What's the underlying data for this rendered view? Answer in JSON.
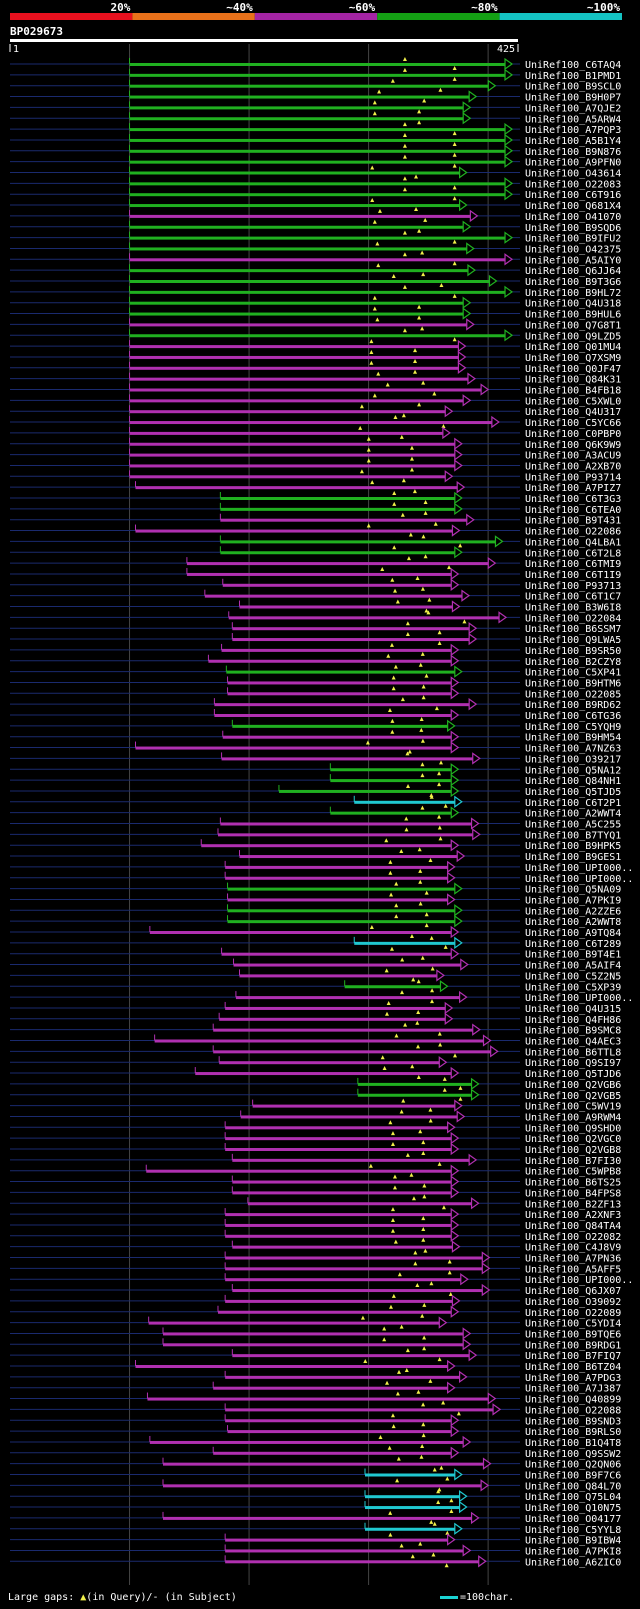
{
  "chart_data": {
    "type": "alignment",
    "query_id": "BP029673",
    "query_start": "1",
    "query_end": "425",
    "query_length": 425,
    "identity_scale": [
      {
        "label": "20%",
        "color": "#e8101e"
      },
      {
        "label": "~40%",
        "color": "#e8711a"
      },
      {
        "label": "~60%",
        "color": "#a424a4"
      },
      {
        "label": "~80%",
        "color": "#14a014"
      },
      {
        "label": "~100%",
        "color": "#14c3c3"
      }
    ],
    "class_colors": {
      "g": "#20b020",
      "m": "#b030b0",
      "c": "#20c8d0"
    },
    "legend": {
      "gaps": "Large gaps:",
      "gaps_query": "(in Query)/",
      "gaps_subject": "- (in Subject)",
      "scale": "=100char."
    },
    "hits": [
      {
        "id": "UniRef100_C6TAQ4",
        "c": "g",
        "s": 100,
        "e": 420
      },
      {
        "id": "UniRef100_B1PMD1",
        "c": "g",
        "s": 100,
        "e": 420
      },
      {
        "id": "UniRef100_B9SCL0",
        "c": "g",
        "s": 100,
        "e": 406
      },
      {
        "id": "UniRef100_B9H0P7",
        "c": "g",
        "s": 100,
        "e": 390
      },
      {
        "id": "UniRef100_A7QJE2",
        "c": "g",
        "s": 100,
        "e": 385
      },
      {
        "id": "UniRef100_A5ARW4",
        "c": "g",
        "s": 100,
        "e": 385
      },
      {
        "id": "UniRef100_A7PQP3",
        "c": "g",
        "s": 100,
        "e": 420
      },
      {
        "id": "UniRef100_A5B1Y4",
        "c": "g",
        "s": 100,
        "e": 420
      },
      {
        "id": "UniRef100_B9N876",
        "c": "g",
        "s": 100,
        "e": 420
      },
      {
        "id": "UniRef100_A9PFN0",
        "c": "g",
        "s": 100,
        "e": 420
      },
      {
        "id": "UniRef100_O43614",
        "c": "g",
        "s": 100,
        "e": 382
      },
      {
        "id": "UniRef100_O22083",
        "c": "g",
        "s": 100,
        "e": 420
      },
      {
        "id": "UniRef100_C6T916",
        "c": "g",
        "s": 100,
        "e": 420
      },
      {
        "id": "UniRef100_Q681X4",
        "c": "g",
        "s": 100,
        "e": 382
      },
      {
        "id": "UniRef100_O41070",
        "c": "m",
        "s": 100,
        "e": 391
      },
      {
        "id": "UniRef100_B9SQD6",
        "c": "g",
        "s": 100,
        "e": 385
      },
      {
        "id": "UniRef100_B9IFU2",
        "c": "g",
        "s": 100,
        "e": 420
      },
      {
        "id": "UniRef100_O42375",
        "c": "g",
        "s": 100,
        "e": 388
      },
      {
        "id": "UniRef100_A5AIY0",
        "c": "m",
        "s": 100,
        "e": 420
      },
      {
        "id": "UniRef100_Q6JJ64",
        "c": "g",
        "s": 100,
        "e": 389
      },
      {
        "id": "UniRef100_B9T3G6",
        "c": "g",
        "s": 100,
        "e": 407
      },
      {
        "id": "UniRef100_B9HL72",
        "c": "g",
        "s": 100,
        "e": 420
      },
      {
        "id": "UniRef100_Q4U318",
        "c": "g",
        "s": 100,
        "e": 385
      },
      {
        "id": "UniRef100_B9HUL6",
        "c": "g",
        "s": 100,
        "e": 385
      },
      {
        "id": "UniRef100_Q7G8T1",
        "c": "m",
        "s": 100,
        "e": 388
      },
      {
        "id": "UniRef100_Q9LZD5",
        "c": "g",
        "s": 100,
        "e": 420
      },
      {
        "id": "UniRef100_Q01MU4",
        "c": "m",
        "s": 100,
        "e": 381
      },
      {
        "id": "UniRef100_Q7XSM9",
        "c": "m",
        "s": 100,
        "e": 381
      },
      {
        "id": "UniRef100_Q0JF47",
        "c": "m",
        "s": 100,
        "e": 381
      },
      {
        "id": "UniRef100_Q84K31",
        "c": "m",
        "s": 100,
        "e": 389
      },
      {
        "id": "UniRef100_B4FB18",
        "c": "m",
        "s": 100,
        "e": 400
      },
      {
        "id": "UniRef100_C5XWL0",
        "c": "m",
        "s": 100,
        "e": 385
      },
      {
        "id": "UniRef100_Q4U317",
        "c": "m",
        "s": 100,
        "e": 370
      },
      {
        "id": "UniRef100_C5YC66",
        "c": "m",
        "s": 100,
        "e": 409
      },
      {
        "id": "UniRef100_C0PBP0",
        "c": "m",
        "s": 100,
        "e": 368
      },
      {
        "id": "UniRef100_Q6K9W9",
        "c": "m",
        "s": 100,
        "e": 378
      },
      {
        "id": "UniRef100_A3ACU9",
        "c": "m",
        "s": 100,
        "e": 378
      },
      {
        "id": "UniRef100_A2XB70",
        "c": "m",
        "s": 100,
        "e": 378
      },
      {
        "id": "UniRef100_P93714",
        "c": "m",
        "s": 100,
        "e": 370
      },
      {
        "id": "UniRef100_A7PIZ7",
        "c": "m",
        "s": 105,
        "e": 380
      },
      {
        "id": "UniRef100_C6T3G3",
        "c": "g",
        "s": 176,
        "e": 378
      },
      {
        "id": "UniRef100_C6TEA0",
        "c": "g",
        "s": 176,
        "e": 378
      },
      {
        "id": "UniRef100_B9T431",
        "c": "m",
        "s": 176,
        "e": 388
      },
      {
        "id": "UniRef100_O22086",
        "c": "m",
        "s": 105,
        "e": 376
      },
      {
        "id": "UniRef100_Q4LBA1",
        "c": "g",
        "s": 176,
        "e": 412
      },
      {
        "id": "UniRef100_C6T2L8",
        "c": "g",
        "s": 176,
        "e": 378
      },
      {
        "id": "UniRef100_C6TMI9",
        "c": "m",
        "s": 148,
        "e": 406
      },
      {
        "id": "UniRef100_C6T1I9",
        "c": "m",
        "s": 148,
        "e": 375
      },
      {
        "id": "UniRef100_P93713",
        "c": "m",
        "s": 178,
        "e": 375
      },
      {
        "id": "UniRef100_C6T1C7",
        "c": "m",
        "s": 163,
        "e": 384
      },
      {
        "id": "UniRef100_B3W6I8",
        "c": "m",
        "s": 192,
        "e": 376
      },
      {
        "id": "UniRef100_O22084",
        "c": "m",
        "s": 183,
        "e": 415
      },
      {
        "id": "UniRef100_B6SSM7",
        "c": "m",
        "s": 186,
        "e": 390
      },
      {
        "id": "UniRef100_Q9LWA5",
        "c": "m",
        "s": 186,
        "e": 390
      },
      {
        "id": "UniRef100_B9SR50",
        "c": "m",
        "s": 177,
        "e": 375
      },
      {
        "id": "UniRef100_B2CZY8",
        "c": "m",
        "s": 166,
        "e": 375
      },
      {
        "id": "UniRef100_C5XP41",
        "c": "g",
        "s": 181,
        "e": 378
      },
      {
        "id": "UniRef100_B9HTM6",
        "c": "m",
        "s": 182,
        "e": 375
      },
      {
        "id": "UniRef100_O22085",
        "c": "m",
        "s": 182,
        "e": 375
      },
      {
        "id": "UniRef100_B9RD62",
        "c": "m",
        "s": 171,
        "e": 390
      },
      {
        "id": "UniRef100_C6TG36",
        "c": "m",
        "s": 171,
        "e": 375
      },
      {
        "id": "UniRef100_C5YQH9",
        "c": "g",
        "s": 186,
        "e": 372
      },
      {
        "id": "UniRef100_B9HM54",
        "c": "m",
        "s": 178,
        "e": 375
      },
      {
        "id": "UniRef100_A7NZ63",
        "c": "m",
        "s": 105,
        "e": 375
      },
      {
        "id": "UniRef100_O39217",
        "c": "m",
        "s": 177,
        "e": 393
      },
      {
        "id": "UniRef100_Q5NA12",
        "c": "g",
        "s": 268,
        "e": 375
      },
      {
        "id": "UniRef100_Q84NH1",
        "c": "g",
        "s": 268,
        "e": 375
      },
      {
        "id": "UniRef100_Q5TJD5",
        "c": "g",
        "s": 225,
        "e": 375
      },
      {
        "id": "UniRef100_C6T2P1",
        "c": "c",
        "s": 288,
        "e": 378
      },
      {
        "id": "UniRef100_A2WWT4",
        "c": "g",
        "s": 268,
        "e": 375
      },
      {
        "id": "UniRef100_A5C255",
        "c": "m",
        "s": 176,
        "e": 392
      },
      {
        "id": "UniRef100_B7TYQ1",
        "c": "m",
        "s": 174,
        "e": 393
      },
      {
        "id": "UniRef100_B9HPK5",
        "c": "m",
        "s": 160,
        "e": 375
      },
      {
        "id": "UniRef100_B9GES1",
        "c": "m",
        "s": 192,
        "e": 380
      },
      {
        "id": "UniRef100_UPI000..",
        "c": "m",
        "s": 180,
        "e": 372
      },
      {
        "id": "UniRef100_UPI000..",
        "c": "m",
        "s": 180,
        "e": 372
      },
      {
        "id": "UniRef100_Q5NA09",
        "c": "g",
        "s": 182,
        "e": 378
      },
      {
        "id": "UniRef100_A7PKI9",
        "c": "m",
        "s": 182,
        "e": 372
      },
      {
        "id": "UniRef100_A2ZZE6",
        "c": "g",
        "s": 182,
        "e": 378
      },
      {
        "id": "UniRef100_A2WWT8",
        "c": "g",
        "s": 182,
        "e": 378
      },
      {
        "id": "UniRef100_A9TQ84",
        "c": "m",
        "s": 117,
        "e": 375
      },
      {
        "id": "UniRef100_C6T289",
        "c": "c",
        "s": 288,
        "e": 378
      },
      {
        "id": "UniRef100_B9T4E1",
        "c": "m",
        "s": 177,
        "e": 375
      },
      {
        "id": "UniRef100_A5AIF4",
        "c": "m",
        "s": 187,
        "e": 383
      },
      {
        "id": "UniRef100_C5Z2N5",
        "c": "m",
        "s": 192,
        "e": 363
      },
      {
        "id": "UniRef100_C5XP39",
        "c": "g",
        "s": 280,
        "e": 366
      },
      {
        "id": "UniRef100_UPI000..",
        "c": "m",
        "s": 189,
        "e": 382
      },
      {
        "id": "UniRef100_Q4U315",
        "c": "m",
        "s": 180,
        "e": 370
      },
      {
        "id": "UniRef100_Q4FH86",
        "c": "m",
        "s": 175,
        "e": 370
      },
      {
        "id": "UniRef100_B9SMC8",
        "c": "m",
        "s": 170,
        "e": 393
      },
      {
        "id": "UniRef100_Q4AEC3",
        "c": "m",
        "s": 121,
        "e": 402
      },
      {
        "id": "UniRef100_B6TTL8",
        "c": "m",
        "s": 170,
        "e": 408
      },
      {
        "id": "UniRef100_Q9SI97",
        "c": "m",
        "s": 175,
        "e": 365
      },
      {
        "id": "UniRef100_Q5TJD6",
        "c": "m",
        "s": 155,
        "e": 375
      },
      {
        "id": "UniRef100_Q2VGB6",
        "c": "g",
        "s": 291,
        "e": 392
      },
      {
        "id": "UniRef100_Q2VGB5",
        "c": "g",
        "s": 291,
        "e": 392
      },
      {
        "id": "UniRef100_C5WV19",
        "c": "m",
        "s": 203,
        "e": 378
      },
      {
        "id": "UniRef100_A9RWM4",
        "c": "m",
        "s": 193,
        "e": 380
      },
      {
        "id": "UniRef100_Q9SHD0",
        "c": "m",
        "s": 180,
        "e": 372
      },
      {
        "id": "UniRef100_Q2VGC0",
        "c": "m",
        "s": 180,
        "e": 375
      },
      {
        "id": "UniRef100_Q2VGB8",
        "c": "m",
        "s": 180,
        "e": 375
      },
      {
        "id": "UniRef100_B7FI30",
        "c": "m",
        "s": 186,
        "e": 390
      },
      {
        "id": "UniRef100_C5WPB8",
        "c": "m",
        "s": 114,
        "e": 375
      },
      {
        "id": "UniRef100_B6TS25",
        "c": "m",
        "s": 186,
        "e": 375
      },
      {
        "id": "UniRef100_B4FPS8",
        "c": "m",
        "s": 186,
        "e": 375
      },
      {
        "id": "UniRef100_B2ZF13",
        "c": "m",
        "s": 199,
        "e": 392
      },
      {
        "id": "UniRef100_A2XNF3",
        "c": "m",
        "s": 180,
        "e": 375
      },
      {
        "id": "UniRef100_Q84TA4",
        "c": "m",
        "s": 180,
        "e": 375
      },
      {
        "id": "UniRef100_O22082",
        "c": "m",
        "s": 180,
        "e": 375
      },
      {
        "id": "UniRef100_C4J8V9",
        "c": "m",
        "s": 186,
        "e": 376
      },
      {
        "id": "UniRef100_A7PN36",
        "c": "m",
        "s": 180,
        "e": 401
      },
      {
        "id": "UniRef100_A5AFF5",
        "c": "m",
        "s": 180,
        "e": 401
      },
      {
        "id": "UniRef100_UPI000..",
        "c": "m",
        "s": 180,
        "e": 383
      },
      {
        "id": "UniRef100_Q6JX07",
        "c": "m",
        "s": 186,
        "e": 401
      },
      {
        "id": "UniRef100_O39092",
        "c": "m",
        "s": 180,
        "e": 376
      },
      {
        "id": "UniRef100_O22089",
        "c": "m",
        "s": 174,
        "e": 375
      },
      {
        "id": "UniRef100_C5YDI4",
        "c": "m",
        "s": 116,
        "e": 365
      },
      {
        "id": "UniRef100_B9TQE6",
        "c": "m",
        "s": 128,
        "e": 385
      },
      {
        "id": "UniRef100_B9RDG1",
        "c": "m",
        "s": 128,
        "e": 385
      },
      {
        "id": "UniRef100_B7FIQ7",
        "c": "m",
        "s": 186,
        "e": 390
      },
      {
        "id": "UniRef100_B6TZ04",
        "c": "m",
        "s": 105,
        "e": 372
      },
      {
        "id": "UniRef100_A7PDG3",
        "c": "m",
        "s": 180,
        "e": 382
      },
      {
        "id": "UniRef100_A7J387",
        "c": "m",
        "s": 170,
        "e": 372
      },
      {
        "id": "UniRef100_Q40899",
        "c": "m",
        "s": 115,
        "e": 406
      },
      {
        "id": "UniRef100_O22088",
        "c": "m",
        "s": 180,
        "e": 410
      },
      {
        "id": "UniRef100_B9SND3",
        "c": "m",
        "s": 180,
        "e": 375
      },
      {
        "id": "UniRef100_B9RLS0",
        "c": "m",
        "s": 182,
        "e": 375
      },
      {
        "id": "UniRef100_B1Q4T8",
        "c": "m",
        "s": 117,
        "e": 385
      },
      {
        "id": "UniRef100_Q9SSW2",
        "c": "m",
        "s": 170,
        "e": 375
      },
      {
        "id": "UniRef100_Q2QN06",
        "c": "m",
        "s": 128,
        "e": 402
      },
      {
        "id": "UniRef100_B9F7C6",
        "c": "c",
        "s": 297,
        "e": 378
      },
      {
        "id": "UniRef100_Q84L70",
        "c": "m",
        "s": 128,
        "e": 400
      },
      {
        "id": "UniRef100_Q75L04",
        "c": "c",
        "s": 297,
        "e": 382
      },
      {
        "id": "UniRef100_Q10N75",
        "c": "c",
        "s": 297,
        "e": 382
      },
      {
        "id": "UniRef100_O04177",
        "c": "m",
        "s": 128,
        "e": 392
      },
      {
        "id": "UniRef100_C5YYL8",
        "c": "c",
        "s": 297,
        "e": 378
      },
      {
        "id": "UniRef100_B9IBW4",
        "c": "m",
        "s": 180,
        "e": 372
      },
      {
        "id": "UniRef100_A7PKI8",
        "c": "m",
        "s": 180,
        "e": 385
      },
      {
        "id": "UniRef100_A6ZIC0",
        "c": "m",
        "s": 180,
        "e": 398
      }
    ]
  }
}
